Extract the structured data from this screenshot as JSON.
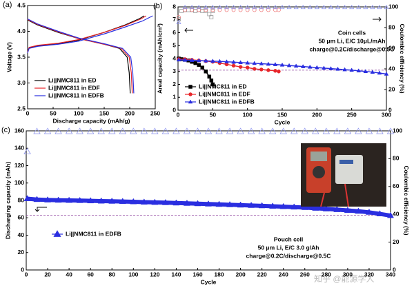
{
  "watermark": "知乎 @能源学人",
  "chart_data": [
    {
      "type": "line",
      "panel_label": "(a)",
      "xlabel": "Discharge capacity (mAh/g)",
      "ylabel": "Voltage (V)",
      "xlim": [
        0,
        250
      ],
      "xticks": [
        0,
        50,
        100,
        150,
        200,
        250
      ],
      "ylim": [
        2.5,
        4.5
      ],
      "yticks": [
        2.5,
        {
          "value": 3,
          "label": "3.0"
        },
        3.5,
        {
          "value": 4,
          "label": "4.0"
        },
        4.5
      ],
      "legend": "lower left",
      "series": [
        {
          "name": "Li||NMC811 in ED",
          "color": "#000000",
          "x": [
            0,
            3,
            20,
            60,
            100,
            150,
            190,
            220,
            228,
            null,
            0,
            20,
            60,
            100,
            150,
            180,
            195,
            199,
            201
          ],
          "values": [
            3.6,
            3.68,
            3.72,
            3.76,
            3.83,
            3.98,
            4.12,
            4.25,
            4.3,
            null,
            4.22,
            4.12,
            3.98,
            3.86,
            3.75,
            3.67,
            3.5,
            3.2,
            2.8
          ]
        },
        {
          "name": "Li||NMC811 in EDF",
          "color": "#e8262a",
          "x": [
            0,
            3,
            20,
            60,
            100,
            150,
            190,
            222,
            232,
            null,
            0,
            20,
            60,
            100,
            150,
            183,
            199,
            203,
            205
          ],
          "values": [
            3.6,
            3.69,
            3.73,
            3.77,
            3.84,
            3.98,
            4.11,
            4.24,
            4.3,
            null,
            4.23,
            4.13,
            3.99,
            3.86,
            3.75,
            3.67,
            3.5,
            3.2,
            2.8
          ]
        },
        {
          "name": "Li||NMC811 in EDFB",
          "color": "#2a2ee0",
          "x": [
            0,
            3,
            20,
            60,
            100,
            150,
            190,
            225,
            245,
            null,
            0,
            20,
            60,
            100,
            150,
            186,
            202,
            206,
            208
          ],
          "values": [
            3.58,
            3.67,
            3.71,
            3.75,
            3.81,
            3.95,
            4.08,
            4.2,
            4.3,
            null,
            4.24,
            4.14,
            4.0,
            3.87,
            3.76,
            3.67,
            3.5,
            3.2,
            2.8
          ]
        }
      ]
    },
    {
      "type": "scatter",
      "panel_label": "(b)",
      "xlabel": "Cycle",
      "ylabel": "Areal capacity (mAh/cm²)",
      "y2label": "Coulombic efficiency (%)",
      "xlim": [
        0,
        300
      ],
      "xticks": [
        0,
        50,
        100,
        150,
        200,
        250,
        300
      ],
      "ylim": [
        0,
        8
      ],
      "yticks": [
        0,
        1,
        2,
        3,
        4,
        5,
        6,
        7,
        8
      ],
      "y2lim": [
        0,
        100
      ],
      "y2ticks": [
        0,
        20,
        40,
        60,
        80,
        100
      ],
      "reference_line": 3.1,
      "legend": "lower left",
      "annotations": [
        "Coin cells",
        "50 μm Li, E/C 10μL/mAh",
        "charge@0.2C/discharge@0.5C"
      ],
      "series": [
        {
          "name": "Li||NMC811 in ED",
          "color": "#000000",
          "marker": "square",
          "filled": true,
          "x": [
            1,
            5,
            10,
            15,
            20,
            25,
            30,
            35,
            40,
            45,
            48,
            50
          ],
          "values": [
            4.0,
            3.95,
            3.9,
            3.85,
            3.75,
            3.65,
            3.5,
            3.3,
            3.0,
            2.6,
            2.3,
            2.0
          ]
        },
        {
          "name": "Li||NMC811 in EDF",
          "color": "#e8262a",
          "marker": "circle",
          "filled": true,
          "x": [
            1,
            10,
            20,
            30,
            40,
            50,
            60,
            70,
            80,
            90,
            100,
            110,
            120,
            130,
            140,
            145
          ],
          "values": [
            3.95,
            3.95,
            3.9,
            3.85,
            3.8,
            3.75,
            3.65,
            3.55,
            3.45,
            3.35,
            3.3,
            3.2,
            3.15,
            3.1,
            3.05,
            3.0
          ]
        },
        {
          "name": "Li||NMC811 in EDFB",
          "color": "#2a2ee0",
          "marker": "triangle",
          "filled": true,
          "x": [
            1,
            10,
            20,
            30,
            40,
            50,
            60,
            70,
            80,
            90,
            100,
            110,
            120,
            130,
            140,
            150,
            160,
            170,
            180,
            190,
            200,
            210,
            220,
            230,
            240,
            250,
            260,
            270,
            280,
            290,
            300
          ],
          "values": [
            3.9,
            3.88,
            3.86,
            3.84,
            3.82,
            3.8,
            3.78,
            3.75,
            3.72,
            3.69,
            3.66,
            3.63,
            3.6,
            3.57,
            3.54,
            3.5,
            3.46,
            3.42,
            3.38,
            3.34,
            3.3,
            3.26,
            3.22,
            3.18,
            3.14,
            3.1,
            3.05,
            3.0,
            2.95,
            2.88,
            2.8
          ]
        },
        {
          "color": "#999999",
          "marker": "square",
          "filled": false,
          "axis": "y2",
          "x": [
            1,
            5,
            10,
            15,
            20,
            25,
            30,
            35,
            40,
            45,
            48,
            50
          ],
          "values": [
            88,
            96,
            97,
            97,
            97,
            96,
            97,
            96,
            96,
            93,
            90,
            96
          ]
        },
        {
          "color": "#f08080",
          "marker": "circle",
          "filled": false,
          "axis": "y2",
          "x": [
            1,
            10,
            20,
            30,
            40,
            50,
            60,
            70,
            80,
            90,
            100,
            110,
            120,
            130,
            140,
            145
          ],
          "values": [
            90,
            97,
            97,
            97,
            97,
            97,
            97,
            97,
            97,
            97,
            97,
            97,
            97,
            97,
            97,
            97
          ]
        },
        {
          "color": "#8f96ee",
          "marker": "triangle",
          "filled": false,
          "axis": "y2",
          "x": [
            1,
            10,
            20,
            30,
            40,
            50,
            60,
            70,
            80,
            90,
            100,
            110,
            120,
            130,
            140,
            150,
            160,
            170,
            180,
            190,
            200,
            210,
            220,
            230,
            240,
            250,
            260,
            270,
            280,
            290,
            300
          ],
          "values": [
            85,
            99.5,
            99.5,
            99.5,
            99.5,
            99.5,
            99.5,
            99.5,
            99.5,
            99.5,
            99.5,
            99.5,
            99.5,
            99.5,
            99.5,
            99.5,
            99.5,
            99.5,
            99.5,
            99.5,
            99.5,
            99.5,
            99.5,
            99.5,
            99.5,
            99.5,
            99.5,
            99.5,
            99.5,
            99.5,
            99.5
          ]
        }
      ]
    },
    {
      "type": "scatter",
      "panel_label": "(c)",
      "xlabel": "Cycle",
      "ylabel": "Discharging capacity (mAh)",
      "y2label": "Coulombic efficiency (%)",
      "xlim": [
        0,
        340
      ],
      "xticks": [
        0,
        20,
        40,
        60,
        80,
        100,
        120,
        140,
        160,
        180,
        200,
        220,
        240,
        260,
        280,
        300,
        320,
        340
      ],
      "ylim": [
        0,
        160
      ],
      "yticks": [
        0,
        20,
        40,
        60,
        80,
        100,
        120,
        140,
        160
      ],
      "y2lim": [
        0,
        100
      ],
      "y2ticks": [
        0,
        20,
        40,
        60,
        80,
        100
      ],
      "reference_line": 63,
      "legend": "lower left",
      "annotations": [
        "Pouch cell",
        "50 μm Li, E/C 3.0 g/Ah",
        "charge@0.2C/discharge@0.5C"
      ],
      "series": [
        {
          "name": "Li||NMC811 in EDFB",
          "color": "#2a2ee0",
          "marker": "triangle",
          "filled": true,
          "x": [
            1,
            10,
            20,
            30,
            40,
            50,
            60,
            70,
            80,
            90,
            100,
            110,
            120,
            130,
            140,
            150,
            160,
            170,
            180,
            190,
            200,
            210,
            220,
            230,
            240,
            250,
            260,
            270,
            280,
            290,
            300,
            310,
            320,
            330,
            340
          ],
          "values": [
            82,
            81,
            80.5,
            80.2,
            80,
            79.8,
            79.5,
            79.2,
            79,
            78.7,
            78.4,
            78,
            77.7,
            77.4,
            77,
            76.6,
            76.2,
            75.8,
            75.4,
            75,
            74.6,
            74.2,
            73.8,
            73.3,
            72.8,
            72.3,
            71.8,
            71,
            70.2,
            69.4,
            68.5,
            67.5,
            66.3,
            64.5,
            62.5
          ]
        },
        {
          "color": "#8f96ee",
          "marker": "triangle",
          "filled": false,
          "axis": "y2",
          "x": [
            1,
            10,
            20,
            30,
            40,
            50,
            60,
            70,
            80,
            90,
            100,
            110,
            120,
            130,
            140,
            150,
            160,
            170,
            180,
            190,
            200,
            210,
            220,
            230,
            240,
            250,
            260,
            270,
            280,
            290,
            300,
            310,
            320,
            330,
            340
          ],
          "values": [
            85,
            99.5,
            99.5,
            99.5,
            99.5,
            99.5,
            99.5,
            99.5,
            99.5,
            99.5,
            99.5,
            99.5,
            99.5,
            99.5,
            99.5,
            99.5,
            99.5,
            99.5,
            99.5,
            99.5,
            99.5,
            99.5,
            99.5,
            99.5,
            99.5,
            99.5,
            99.5,
            99.5,
            99.5,
            99.5,
            99.5,
            99.5,
            99.5,
            99.5,
            99.5
          ]
        }
      ]
    }
  ]
}
